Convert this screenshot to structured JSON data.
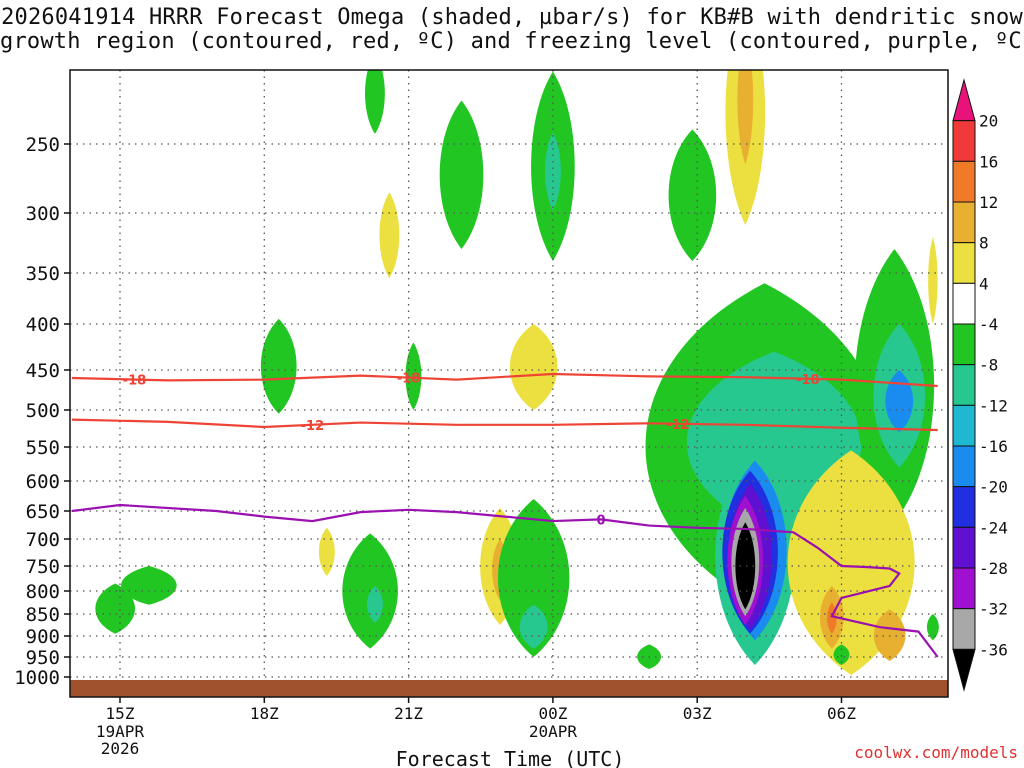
{
  "title_line1": "2026041914 HRRR Forecast Omega (shaded, µbar/s) for KB#B with dendritic snow",
  "title_line2": "growth region (contoured, red, ºC) and freezing level (contoured, purple, ºC)",
  "footer": "coolwx.com/models",
  "chart_data": {
    "type": "heatmap",
    "xlabel": "Forecast Time (UTC)",
    "ylabel": "Pressure (mb)",
    "x_ticks": [
      {
        "hour": 15,
        "label": "15Z",
        "sub": [
          "19APR",
          "2026"
        ]
      },
      {
        "hour": 18,
        "label": "18Z",
        "sub": []
      },
      {
        "hour": 21,
        "label": "21Z",
        "sub": []
      },
      {
        "hour": 24,
        "label": "00Z",
        "sub": [
          "20APR"
        ]
      },
      {
        "hour": 27,
        "label": "03Z",
        "sub": []
      },
      {
        "hour": 30,
        "label": "06Z",
        "sub": []
      }
    ],
    "xlim": [
      14,
      32
    ],
    "y_ticks": [
      250,
      300,
      350,
      400,
      450,
      500,
      550,
      600,
      650,
      700,
      750,
      800,
      850,
      900,
      950,
      1000
    ],
    "ylim": [
      150,
      1020
    ],
    "colorbar": {
      "labels": [
        "20",
        "16",
        "12",
        "8",
        "4",
        "-4",
        "-8",
        "-12",
        "-16",
        "-20",
        "-24",
        "-28",
        "-32",
        "-36"
      ],
      "colors": [
        "#e8127a",
        "#f03a3a",
        "#f07a28",
        "#e8b030",
        "#ece040",
        "#ffffff",
        "#22c622",
        "#26c890",
        "#20b8d0",
        "#1a8cf0",
        "#2030e0",
        "#6010d0",
        "#a010d0",
        "#a8a8a8",
        "#000000"
      ]
    },
    "contours": [
      {
        "label": "-18",
        "color": "#ee4436",
        "points": [
          [
            14,
            460
          ],
          [
            16,
            463
          ],
          [
            18,
            462
          ],
          [
            20,
            457
          ],
          [
            22,
            462
          ],
          [
            24,
            455
          ],
          [
            26,
            458
          ],
          [
            28,
            459
          ],
          [
            30,
            462
          ],
          [
            32,
            470
          ]
        ]
      },
      {
        "label": "-12",
        "color": "#ee4436",
        "points": [
          [
            14,
            513
          ],
          [
            16,
            516
          ],
          [
            18,
            523
          ],
          [
            20,
            517
          ],
          [
            22,
            520
          ],
          [
            24,
            520
          ],
          [
            26,
            518
          ],
          [
            28,
            520
          ],
          [
            30,
            524
          ],
          [
            32,
            527
          ]
        ]
      },
      {
        "label": "0",
        "color": "#9a10b0",
        "points": [
          [
            14,
            650
          ],
          [
            15,
            640
          ],
          [
            17,
            650
          ],
          [
            18,
            660
          ],
          [
            19,
            668
          ],
          [
            20,
            652
          ],
          [
            21,
            648
          ],
          [
            22,
            652
          ],
          [
            23,
            660
          ],
          [
            24,
            668
          ],
          [
            25,
            665
          ],
          [
            26,
            676
          ],
          [
            27,
            680
          ],
          [
            28,
            682
          ],
          [
            29,
            688
          ],
          [
            29.5,
            716
          ],
          [
            30,
            750
          ],
          [
            30.5,
            752
          ],
          [
            31,
            755
          ],
          [
            31.2,
            765
          ],
          [
            31,
            790
          ],
          [
            30,
            815
          ],
          [
            29.8,
            855
          ],
          [
            30.8,
            880
          ],
          [
            31.6,
            890
          ],
          [
            32,
            950
          ]
        ]
      }
    ],
    "omega_regions": [
      {
        "cx": 14.9,
        "cy": 840,
        "rx": 0.5,
        "ry": 55,
        "value": -8
      },
      {
        "cx": 15.6,
        "cy": 790,
        "rx": 0.7,
        "ry": 40,
        "value": -8
      },
      {
        "cx": 18.3,
        "cy": 450,
        "rx": 0.45,
        "ry": 55,
        "value": -8
      },
      {
        "cx": 20.3,
        "cy": 215,
        "rx": 0.25,
        "ry": 28,
        "value": -8
      },
      {
        "cx": 20.6,
        "cy": 320,
        "rx": 0.25,
        "ry": 35,
        "value": 4
      },
      {
        "cx": 19.3,
        "cy": 725,
        "rx": 0.2,
        "ry": 45,
        "value": 4
      },
      {
        "cx": 20.2,
        "cy": 810,
        "rx": 0.7,
        "ry": 120,
        "value": -8
      },
      {
        "cx": 20.3,
        "cy": 830,
        "rx": 0.2,
        "ry": 40,
        "value": -12
      },
      {
        "cx": 21.1,
        "cy": 460,
        "rx": 0.2,
        "ry": 40,
        "value": -8
      },
      {
        "cx": 22.1,
        "cy": 275,
        "rx": 0.55,
        "ry": 55,
        "value": -8
      },
      {
        "cx": 22.9,
        "cy": 760,
        "rx": 0.5,
        "ry": 115,
        "value": 4
      },
      {
        "cx": 22.9,
        "cy": 760,
        "rx": 0.2,
        "ry": 60,
        "value": 8
      },
      {
        "cx": 23.6,
        "cy": 790,
        "rx": 0.9,
        "ry": 160,
        "value": -8
      },
      {
        "cx": 23.6,
        "cy": 880,
        "rx": 0.35,
        "ry": 50,
        "value": -12
      },
      {
        "cx": 24.0,
        "cy": 270,
        "rx": 0.55,
        "ry": 70,
        "value": -8
      },
      {
        "cx": 24.0,
        "cy": 270,
        "rx": 0.2,
        "ry": 28,
        "value": -12
      },
      {
        "cx": 23.6,
        "cy": 450,
        "rx": 0.6,
        "ry": 50,
        "value": 4
      },
      {
        "cx": 26.9,
        "cy": 290,
        "rx": 0.6,
        "ry": 50,
        "value": -8
      },
      {
        "cx": 26.8,
        "cy": 625,
        "rx": 0.4,
        "ry": 60,
        "value": 4
      },
      {
        "cx": 26.8,
        "cy": 625,
        "rx": 0.15,
        "ry": 25,
        "value": 8
      },
      {
        "cx": 26.0,
        "cy": 950,
        "rx": 0.3,
        "ry": 30,
        "value": -8
      },
      {
        "cx": 28.0,
        "cy": 230,
        "rx": 0.5,
        "ry": 80,
        "value": 4
      },
      {
        "cx": 28.0,
        "cy": 220,
        "rx": 0.2,
        "ry": 45,
        "value": 8
      },
      {
        "cx": 28.4,
        "cy": 600,
        "rx": 3.0,
        "ry": 240,
        "value": -8
      },
      {
        "cx": 28.6,
        "cy": 560,
        "rx": 2.2,
        "ry": 130,
        "value": -12
      },
      {
        "cx": 31.1,
        "cy": 500,
        "rx": 1.0,
        "ry": 170,
        "value": -8
      },
      {
        "cx": 31.2,
        "cy": 490,
        "rx": 0.65,
        "ry": 90,
        "value": -12
      },
      {
        "cx": 31.2,
        "cy": 490,
        "rx": 0.35,
        "ry": 40,
        "value": -16
      },
      {
        "cx": 28.2,
        "cy": 760,
        "rx": 1.0,
        "ry": 210,
        "value": -12
      },
      {
        "cx": 28.2,
        "cy": 740,
        "rx": 0.8,
        "ry": 170,
        "value": -16
      },
      {
        "cx": 28.1,
        "cy": 740,
        "rx": 0.7,
        "ry": 155,
        "value": -20
      },
      {
        "cx": 28.1,
        "cy": 745,
        "rx": 0.55,
        "ry": 140,
        "value": -24
      },
      {
        "cx": 28.0,
        "cy": 750,
        "rx": 0.45,
        "ry": 125,
        "value": -28
      },
      {
        "cx": 28.0,
        "cy": 750,
        "rx": 0.35,
        "ry": 105,
        "value": -32
      },
      {
        "cx": 28.0,
        "cy": 755,
        "rx": 0.25,
        "ry": 85,
        "value": -36
      },
      {
        "cx": 30.2,
        "cy": 775,
        "rx": 1.6,
        "ry": 220,
        "value": 4
      },
      {
        "cx": 29.8,
        "cy": 860,
        "rx": 0.3,
        "ry": 70,
        "value": 8
      },
      {
        "cx": 29.8,
        "cy": 860,
        "rx": 0.12,
        "ry": 35,
        "value": 12
      },
      {
        "cx": 31.0,
        "cy": 900,
        "rx": 0.4,
        "ry": 60,
        "value": 8
      },
      {
        "cx": 30.0,
        "cy": 945,
        "rx": 0.2,
        "ry": 25,
        "value": -8
      },
      {
        "cx": 31.9,
        "cy": 880,
        "rx": 0.15,
        "ry": 30,
        "value": -8
      },
      {
        "cx": 31.9,
        "cy": 360,
        "rx": 0.12,
        "ry": 40,
        "value": 4
      }
    ]
  }
}
